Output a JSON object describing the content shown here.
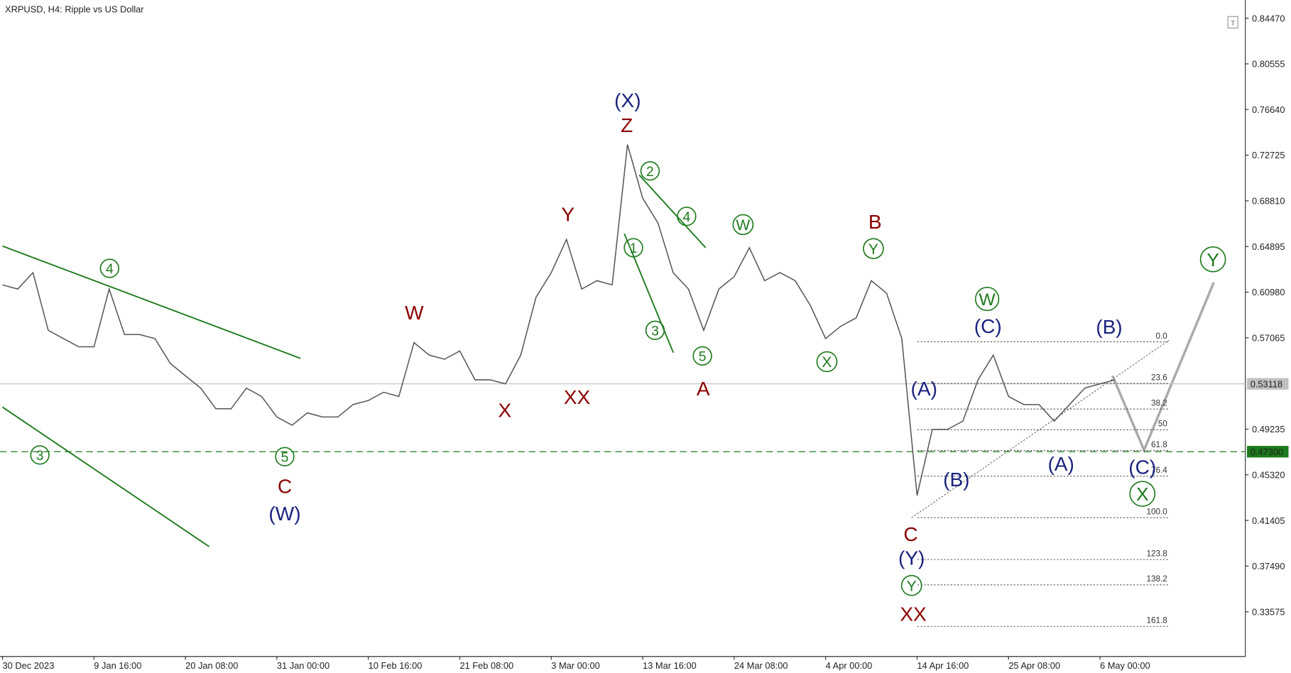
{
  "chart_data": {
    "type": "line",
    "title": "XRPUSD, H4:  Ripple vs US Dollar",
    "categories": [
      "30 Dec 2023",
      null,
      null,
      null,
      null,
      null,
      "9 Jan 16:00",
      null,
      null,
      null,
      null,
      null,
      "20 Jan 08:00",
      null,
      null,
      null,
      null,
      null,
      "31 Jan 00:00",
      null,
      null,
      null,
      null,
      null,
      "10 Feb 16:00",
      null,
      null,
      null,
      null,
      null,
      "21 Feb 08:00",
      null,
      null,
      null,
      null,
      null,
      "3 Mar 00:00",
      null,
      null,
      null,
      null,
      null,
      "13 Mar 16:00",
      null,
      null,
      null,
      null,
      null,
      "24 Mar 08:00",
      null,
      null,
      null,
      null,
      null,
      "4 Apr 00:00",
      null,
      null,
      null,
      null,
      null,
      "14 Apr 16:00",
      null,
      null,
      null,
      null,
      null,
      "25 Apr 08:00",
      null,
      null,
      null,
      null,
      null,
      "6 May 00:00",
      null
    ],
    "values": [
      0.616,
      0.6125,
      0.6266,
      0.5771,
      0.57,
      0.5629,
      0.5629,
      0.6125,
      0.5735,
      0.5735,
      0.57,
      0.5488,
      0.5381,
      0.5275,
      0.5098,
      0.5098,
      0.5275,
      0.5204,
      0.5027,
      0.4957,
      0.5063,
      0.5027,
      0.5027,
      0.5134,
      0.5169,
      0.524,
      0.5204,
      0.5665,
      0.5558,
      0.5523,
      0.5594,
      0.5346,
      0.5346,
      0.5311,
      0.5558,
      0.6054,
      0.6266,
      0.655,
      0.6125,
      0.6196,
      0.616,
      0.7364,
      0.6904,
      0.6691,
      0.6266,
      0.6125,
      0.5771,
      0.6125,
      0.6231,
      0.6479,
      0.6196,
      0.6266,
      0.6196,
      0.5983,
      0.57,
      0.5806,
      0.5877,
      0.6196,
      0.6089,
      0.57,
      0.4355,
      0.4921,
      0.4921,
      0.4992,
      0.5346,
      0.5558,
      0.5204,
      0.5134,
      0.5134,
      0.4992,
      0.5134,
      0.5275,
      0.5311,
      0.5346
    ],
    "color": "#555555",
    "ylim": [
      0.2974,
      0.8603
    ],
    "yticks": [
      {
        "value": 0.8447,
        "label": "0.84470"
      },
      0.80555,
      {
        "value": 0.7664,
        "label": "0.76640"
      },
      0.72725,
      {
        "value": 0.6881,
        "label": "0.68810"
      },
      0.64895,
      {
        "value": 0.6098,
        "label": "0.60980"
      },
      0.57065,
      0.49235,
      {
        "value": 0.4532,
        "label": "0.45320"
      },
      0.41405,
      {
        "value": 0.3749,
        "label": "0.37490"
      },
      0.33575
    ],
    "current_price": 0.53118,
    "current_price_color": "#c0c0c0",
    "level_line": {
      "value": 0.473,
      "label": "0.47300"
    },
    "level_color": "#1b7a1b",
    "fibo": {
      "from": 0.4164,
      "to": 0.5672,
      "levels": [
        {
          "value": 0,
          "label": "0.0"
        },
        23.6,
        38.2,
        50,
        61.8,
        76.4,
        {
          "value": 100,
          "label": "100.0"
        },
        123.8,
        138.2,
        161.8
      ]
    },
    "annotations": [
      {
        "text": "(X)",
        "color": "#1a237e"
      },
      {
        "text": "Z",
        "color": "#8b0000"
      },
      {
        "text": "Y",
        "color": "#8b0000"
      },
      {
        "text": "W",
        "color": "#8b0000"
      },
      {
        "text": "X",
        "color": "#8b0000"
      },
      {
        "text": "XX",
        "color": "#8b0000"
      },
      {
        "text": "A",
        "color": "#8b0000"
      },
      {
        "text": "B",
        "color": "#8b0000"
      },
      {
        "text": "C",
        "color": "#8b0000"
      },
      {
        "text": "(W)",
        "color": "#1a237e"
      },
      {
        "text": "C",
        "color": "#8b0000"
      },
      {
        "text": "(Y)",
        "color": "#1a237e"
      },
      {
        "text": "XX",
        "color": "#8b0000"
      },
      {
        "text": "(A)",
        "color": "#1a237e"
      },
      {
        "text": "(B)",
        "color": "#1a237e"
      },
      {
        "text": "(C)",
        "color": "#1a237e"
      },
      {
        "text": "(A)",
        "color": "#1a237e"
      },
      {
        "text": "(B)",
        "color": "#1a237e"
      },
      {
        "text": "(C)",
        "color": "#1a237e"
      },
      {
        "text": "4",
        "color": "#1b7a1b",
        "circled": true
      },
      {
        "text": "3",
        "color": "#1b7a1b",
        "circled": true
      },
      {
        "text": "5",
        "color": "#1b7a1b",
        "circled": true
      },
      {
        "text": "2",
        "color": "#1b7a1b",
        "circled": true
      },
      {
        "text": "4",
        "color": "#1b7a1b",
        "circled": true
      },
      {
        "text": "1",
        "color": "#1b7a1b",
        "circled": true
      },
      {
        "text": "3",
        "color": "#1b7a1b",
        "circled": true
      },
      {
        "text": "5",
        "color": "#1b7a1b",
        "circled": true
      },
      {
        "text": "W",
        "color": "#1b7a1b",
        "circled": true
      },
      {
        "text": "Y",
        "color": "#1b7a1b",
        "circled": true
      },
      {
        "text": "X",
        "color": "#1b7a1b",
        "circled": true
      },
      {
        "text": "W",
        "color": "#1b7a1b",
        "circled": true
      },
      {
        "text": "Y",
        "color": "#1b7a1b",
        "circled": true
      },
      {
        "text": "X",
        "color": "#1b7a1b",
        "circled": true
      },
      {
        "text": "Y",
        "color": "#1b7a1b",
        "circled": true
      }
    ]
  }
}
